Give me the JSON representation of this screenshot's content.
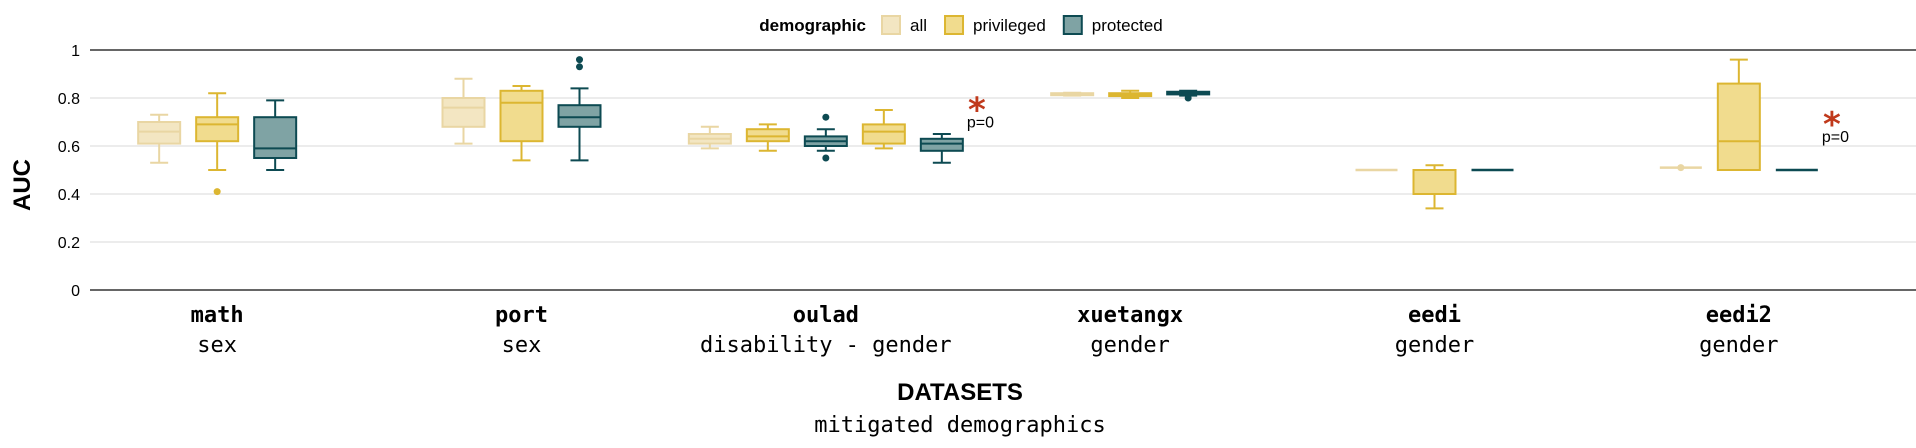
{
  "chart_data": {
    "type": "box",
    "legend": {
      "title": "demographic",
      "position": "top-center",
      "entries": [
        {
          "key": "all",
          "label": "all",
          "fill": "#f3e6c2",
          "stroke": "#e9d6a3"
        },
        {
          "key": "privileged",
          "label": "privileged",
          "fill": "#f1dc8e",
          "stroke": "#dcb631"
        },
        {
          "key": "protected",
          "label": "protected",
          "fill": "#7fa3a4",
          "stroke": "#0d4a52"
        }
      ]
    },
    "ylabel": "AUC",
    "ylim": [
      0,
      1
    ],
    "yticks": [
      {
        "value": 0,
        "label": "0"
      },
      {
        "value": 0.2,
        "label": "0.2"
      },
      {
        "value": 0.4,
        "label": "0.4"
      },
      {
        "value": 0.6,
        "label": "0.6"
      },
      {
        "value": 0.8,
        "label": "0.8"
      },
      {
        "value": 1,
        "label": "1"
      }
    ],
    "grid": true,
    "xlabel": "DATASETS",
    "xlabel_sub": "mitigated demographics",
    "datasets": [
      {
        "name": "math",
        "sub": "sex",
        "boxes": [
          {
            "group": "all",
            "min": 0.53,
            "q1": 0.61,
            "median": 0.66,
            "q3": 0.7,
            "max": 0.73,
            "outliers": []
          },
          {
            "group": "privileged",
            "min": 0.5,
            "q1": 0.62,
            "median": 0.69,
            "q3": 0.72,
            "max": 0.82,
            "outliers": [
              0.41
            ]
          },
          {
            "group": "protected",
            "min": 0.5,
            "q1": 0.55,
            "median": 0.59,
            "q3": 0.72,
            "max": 0.79,
            "outliers": []
          }
        ]
      },
      {
        "name": "port",
        "sub": "sex",
        "boxes": [
          {
            "group": "all",
            "min": 0.61,
            "q1": 0.68,
            "median": 0.76,
            "q3": 0.8,
            "max": 0.88,
            "outliers": []
          },
          {
            "group": "privileged",
            "min": 0.54,
            "q1": 0.62,
            "median": 0.78,
            "q3": 0.83,
            "max": 0.85,
            "outliers": []
          },
          {
            "group": "protected",
            "min": 0.54,
            "q1": 0.68,
            "median": 0.72,
            "q3": 0.77,
            "max": 0.84,
            "outliers": [
              0.93,
              0.96
            ]
          }
        ]
      },
      {
        "name": "oulad",
        "sub": "disability - gender",
        "boxes": [
          {
            "group": "all",
            "min": 0.59,
            "q1": 0.61,
            "median": 0.63,
            "q3": 0.65,
            "max": 0.68,
            "outliers": []
          },
          {
            "group": "privileged",
            "min": 0.58,
            "q1": 0.62,
            "median": 0.64,
            "q3": 0.67,
            "max": 0.69,
            "outliers": []
          },
          {
            "group": "protected",
            "min": 0.58,
            "q1": 0.6,
            "median": 0.62,
            "q3": 0.64,
            "max": 0.67,
            "outliers": [
              0.55,
              0.72
            ]
          },
          {
            "group": "privileged",
            "min": 0.59,
            "q1": 0.61,
            "median": 0.66,
            "q3": 0.69,
            "max": 0.75,
            "outliers": []
          },
          {
            "group": "protected",
            "min": 0.53,
            "q1": 0.58,
            "median": 0.61,
            "q3": 0.63,
            "max": 0.65,
            "outliers": []
          }
        ],
        "annotation": {
          "star": "*",
          "text": "p=0",
          "value": 0.76
        }
      },
      {
        "name": "xuetangx",
        "sub": "gender",
        "boxes": [
          {
            "group": "all",
            "min": 0.81,
            "q1": 0.813,
            "median": 0.816,
            "q3": 0.82,
            "max": 0.822,
            "outliers": []
          },
          {
            "group": "privileged",
            "min": 0.8,
            "q1": 0.808,
            "median": 0.813,
            "q3": 0.82,
            "max": 0.83,
            "outliers": []
          },
          {
            "group": "protected",
            "min": 0.81,
            "q1": 0.815,
            "median": 0.82,
            "q3": 0.826,
            "max": 0.83,
            "outliers": [
              0.8
            ]
          }
        ]
      },
      {
        "name": "eedi",
        "sub": "gender",
        "boxes": [
          {
            "group": "all",
            "min": 0.5,
            "q1": 0.5,
            "median": 0.5,
            "q3": 0.5,
            "max": 0.5,
            "outliers": []
          },
          {
            "group": "privileged",
            "min": 0.34,
            "q1": 0.4,
            "median": 0.4,
            "q3": 0.5,
            "max": 0.52,
            "outliers": []
          },
          {
            "group": "protected",
            "min": 0.5,
            "q1": 0.5,
            "median": 0.5,
            "q3": 0.5,
            "max": 0.5,
            "outliers": []
          }
        ]
      },
      {
        "name": "eedi2",
        "sub": "gender",
        "boxes": [
          {
            "group": "all",
            "min": 0.51,
            "q1": 0.51,
            "median": 0.51,
            "q3": 0.51,
            "max": 0.51,
            "outliers": [
              0.51
            ]
          },
          {
            "group": "privileged",
            "min": 0.5,
            "q1": 0.5,
            "median": 0.62,
            "q3": 0.86,
            "max": 0.96,
            "outliers": []
          },
          {
            "group": "protected",
            "min": 0.5,
            "q1": 0.5,
            "median": 0.5,
            "q3": 0.5,
            "max": 0.5,
            "outliers": []
          }
        ],
        "annotation": {
          "star": "*",
          "text": "p=0",
          "value": 0.7
        }
      }
    ]
  }
}
